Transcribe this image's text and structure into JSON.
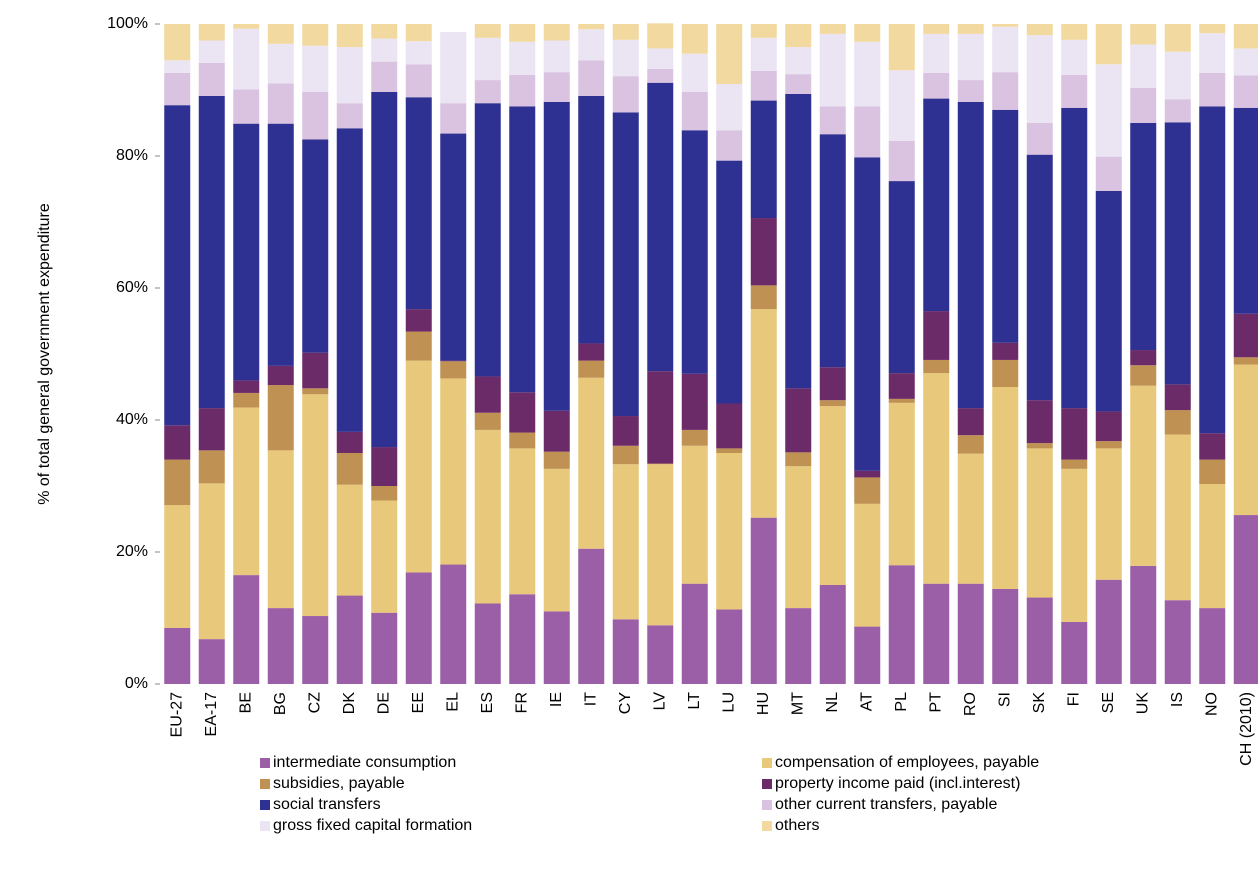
{
  "chart_data": {
    "type": "stacked_bar",
    "y_label": "% of total general government expenditure",
    "categories": [
      "EU-27",
      "EA-17",
      "BE",
      "BG",
      "CZ",
      "DK",
      "DE",
      "EE",
      "EL",
      "ES",
      "FR",
      "IE",
      "IT",
      "CY",
      "LV",
      "LT",
      "LU",
      "HU",
      "MT",
      "NL",
      "AT",
      "PL",
      "PT",
      "RO",
      "SI",
      "SK",
      "FI",
      "SE",
      "UK",
      "IS",
      "NO",
      "CH (2010)"
    ],
    "ylim": [
      0,
      100
    ],
    "yticks": [
      {
        "value": 0,
        "label": "0%"
      },
      {
        "value": 20,
        "label": "20%"
      },
      {
        "value": 40,
        "label": "40%"
      },
      {
        "value": 60,
        "label": "60%"
      },
      {
        "value": 80,
        "label": "80%"
      },
      {
        "value": 100,
        "label": "100%"
      }
    ],
    "grid": false,
    "series": [
      {
        "name": "intermediate consumption",
        "color": "#9b5fa8",
        "values": [
          8.5,
          6.8,
          16.5,
          11.5,
          10.3,
          13.4,
          10.8,
          16.9,
          18.1,
          12.2,
          13.6,
          11.0,
          20.5,
          9.8,
          8.9,
          15.2,
          11.3,
          25.2,
          11.5,
          15.0,
          8.7,
          18.0,
          15.2,
          15.2,
          14.4,
          13.1,
          9.4,
          15.8,
          17.9,
          12.7,
          11.5,
          25.6
        ]
      },
      {
        "name": "compensation of employees, payable",
        "color": "#e8c87a",
        "values": [
          18.6,
          23.6,
          25.4,
          23.9,
          33.6,
          16.8,
          17.0,
          32.1,
          28.2,
          26.3,
          22.1,
          21.6,
          25.9,
          23.5,
          24.4,
          20.9,
          23.7,
          31.6,
          21.5,
          27.1,
          18.6,
          24.6,
          31.9,
          19.7,
          30.6,
          22.6,
          23.2,
          19.9,
          27.3,
          25.1,
          18.8,
          22.8
        ]
      },
      {
        "name": "subsidies, payable",
        "color": "#bf9153",
        "values": [
          6.9,
          5.0,
          2.2,
          9.9,
          0.9,
          4.8,
          2.2,
          4.4,
          2.6,
          2.6,
          2.4,
          2.6,
          2.6,
          2.8,
          0.1,
          2.4,
          0.7,
          3.6,
          2.1,
          0.9,
          4.0,
          0.6,
          2.0,
          2.8,
          4.1,
          0.8,
          1.4,
          1.1,
          3.1,
          3.7,
          3.7,
          1.1
        ]
      },
      {
        "name": "property income paid (incl.interest)",
        "color": "#6b2a68",
        "values": [
          5.2,
          6.4,
          1.9,
          2.9,
          5.4,
          3.2,
          5.9,
          3.4,
          0.1,
          5.5,
          6.1,
          6.2,
          2.6,
          4.5,
          14.0,
          8.5,
          6.8,
          10.2,
          9.7,
          5.0,
          1.0,
          3.9,
          7.4,
          4.1,
          2.6,
          6.5,
          7.8,
          4.5,
          2.3,
          3.9,
          4.0,
          6.6
        ]
      },
      {
        "name": "social transfers",
        "color": "#2e3192",
        "values": [
          48.5,
          47.3,
          38.9,
          36.7,
          32.3,
          46.0,
          53.8,
          32.1,
          34.4,
          41.4,
          43.3,
          46.8,
          37.5,
          46.0,
          43.7,
          36.9,
          36.8,
          17.8,
          44.6,
          35.3,
          47.5,
          29.1,
          32.2,
          46.4,
          35.3,
          37.2,
          45.5,
          33.4,
          34.4,
          39.7,
          49.5,
          31.2
        ]
      },
      {
        "name": "other current transfers, payable",
        "color": "#d9c3e0",
        "values": [
          4.9,
          5.0,
          5.2,
          6.1,
          7.2,
          3.8,
          4.6,
          5.0,
          4.6,
          3.5,
          4.8,
          4.5,
          5.4,
          5.5,
          2.1,
          5.8,
          4.6,
          4.5,
          3.0,
          4.2,
          7.7,
          6.1,
          3.9,
          3.3,
          5.7,
          4.8,
          5.0,
          5.2,
          5.3,
          3.5,
          5.1,
          4.9
        ]
      },
      {
        "name": "gross fixed capital formation",
        "color": "#ebe4f3",
        "values": [
          1.9,
          3.4,
          9.2,
          6.0,
          7.0,
          8.5,
          3.5,
          3.5,
          10.8,
          6.4,
          5.0,
          4.8,
          4.7,
          5.5,
          3.1,
          5.8,
          7.0,
          5.0,
          4.1,
          11.0,
          9.8,
          10.7,
          5.9,
          7.0,
          6.9,
          13.3,
          5.3,
          14.0,
          6.6,
          7.2,
          6.0,
          4.1
        ]
      },
      {
        "name": "others",
        "color": "#f2d9a0",
        "values": [
          5.5,
          2.5,
          0.7,
          3.0,
          3.3,
          3.5,
          2.2,
          2.6,
          0,
          2.1,
          2.7,
          2.5,
          0.8,
          2.4,
          3.8,
          4.5,
          9.1,
          2.1,
          3.5,
          1.5,
          2.7,
          7.0,
          1.5,
          1.5,
          0.4,
          1.7,
          2.4,
          6.1,
          3.1,
          4.2,
          1.4,
          3.7
        ]
      }
    ]
  }
}
